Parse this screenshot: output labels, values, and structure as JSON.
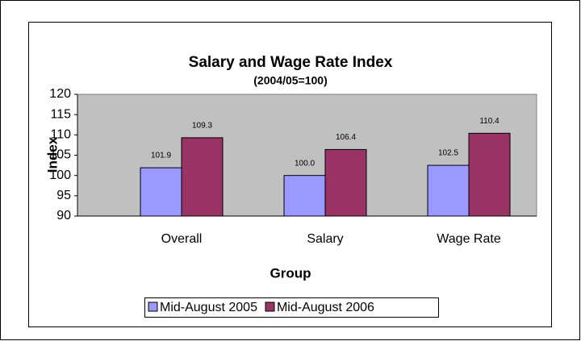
{
  "chart_data": {
    "type": "bar",
    "title": "Salary and Wage Rate Index",
    "subtitle": "(2004/05=100)",
    "x_label": "Group",
    "y_label": "Index",
    "categories": [
      "Overall",
      "Salary",
      "Wage Rate"
    ],
    "series": [
      {
        "name": "Mid-August 2005",
        "color": "#9999ff",
        "values": [
          101.9,
          100.0,
          102.5
        ],
        "value_labels": [
          "101.9",
          "100.0",
          "102.5"
        ]
      },
      {
        "name": "Mid-August 2006",
        "color": "#993366",
        "values": [
          109.3,
          106.4,
          110.4
        ],
        "value_labels": [
          "109.3",
          "106.4",
          "110.4"
        ]
      }
    ],
    "ylim": [
      90,
      120
    ],
    "yticks": [
      90,
      95,
      100,
      105,
      110,
      115,
      120
    ],
    "grid": false,
    "legend": "bottom"
  }
}
